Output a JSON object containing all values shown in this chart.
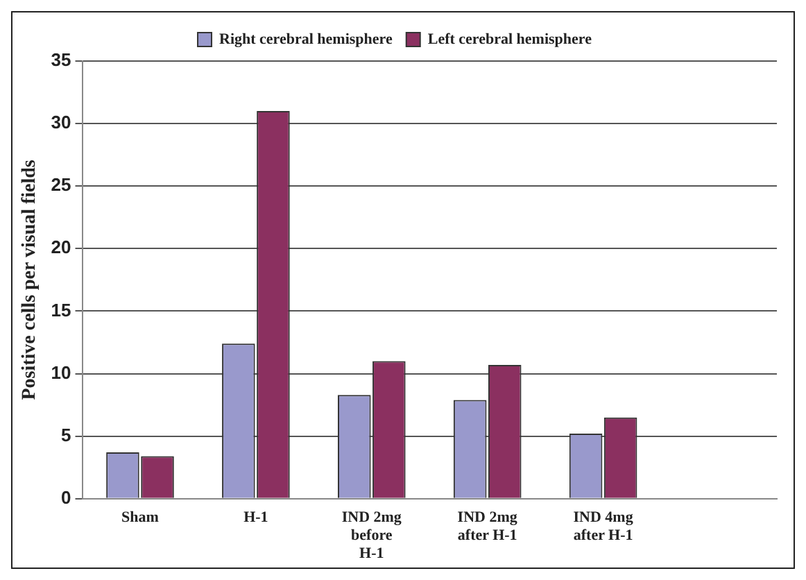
{
  "chart_data": {
    "type": "bar",
    "ylabel": "Positive cells per visual fields",
    "categories": [
      "Sham",
      "H-1",
      "IND 2mg before H-1",
      "IND 2mg after H-1",
      "IND 4mg after H-1",
      null
    ],
    "series": [
      {
        "name": "Right cerebral hemisphere",
        "color": "#9999cc",
        "values": [
          3.7,
          12.4,
          8.3,
          7.9,
          5.2,
          null
        ]
      },
      {
        "name": "Left cerebral hemisphere",
        "color": "#8b3060",
        "values": [
          3.4,
          31,
          11,
          10.7,
          6.5,
          null
        ]
      }
    ],
    "ylim": [
      0,
      35
    ],
    "yticks": [
      0,
      5,
      10,
      15,
      20,
      25,
      30,
      35
    ],
    "grid": "y",
    "legend": "top"
  }
}
